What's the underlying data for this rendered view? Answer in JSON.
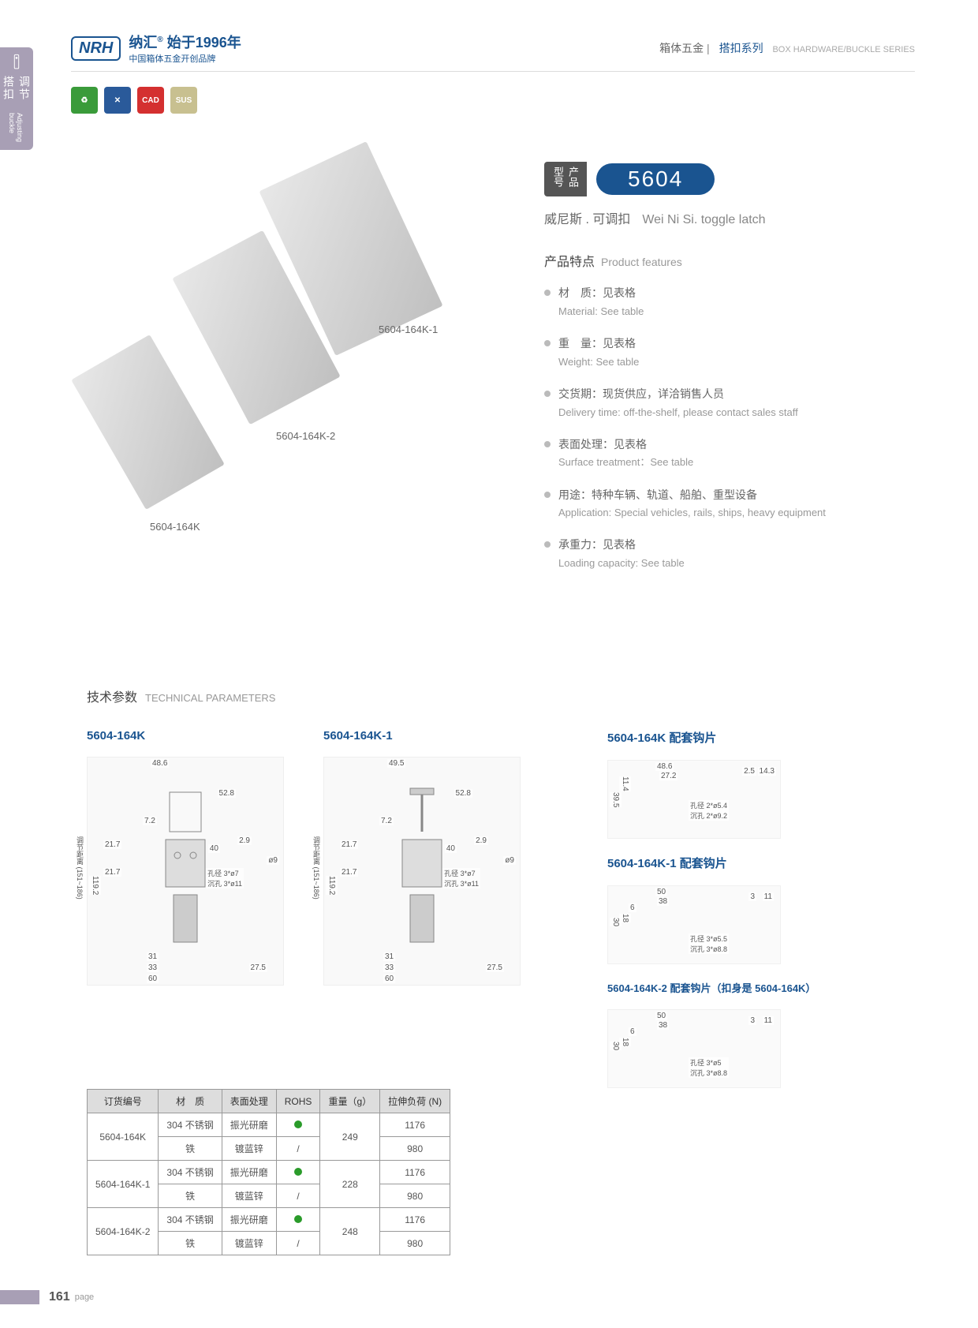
{
  "sideTab": {
    "cn": "调节搭扣",
    "en": "Adjusting buckle"
  },
  "logo": {
    "mark": "NRH",
    "main": "纳汇",
    "sup": "®",
    "year": "始于1996年",
    "sub": "中国箱体五金开创品牌"
  },
  "headerRight": {
    "cat1": "箱体五金",
    "cat2": "搭扣系列",
    "en": "BOX HARDWARE/BUCKLE SERIES"
  },
  "icons": {
    "i1": "♻",
    "i2": "✕",
    "i3": "CAD",
    "i4": "SUS"
  },
  "productLabels": {
    "p1": "5604-164K-1",
    "p2": "5604-164K-2",
    "p3": "5604-164K"
  },
  "model": {
    "label": "产品型号",
    "number": "5604"
  },
  "productName": {
    "cn": "威尼斯 . 可调扣",
    "en": "Wei Ni Si. toggle latch"
  },
  "featuresTitle": {
    "cn": "产品特点",
    "en": "Product features"
  },
  "features": [
    {
      "cn": "材　质：见表格",
      "en": "Material: See table"
    },
    {
      "cn": "重　量：见表格",
      "en": "Weight: See table"
    },
    {
      "cn": "交货期：现货供应，详洽销售人员",
      "en": "Delivery time: off-the-shelf, please contact sales staff"
    },
    {
      "cn": "表面处理：见表格",
      "en": "Surface treatment：See table"
    },
    {
      "cn": "用途：特种车辆、轨道、船舶、重型设备",
      "en": "Application: Special vehicles, rails, ships, heavy equipment"
    },
    {
      "cn": "承重力：见表格",
      "en": "Loading capacity: See table"
    }
  ],
  "techTitle": {
    "cn": "技术参数",
    "en": "TECHNICAL PARAMETERS"
  },
  "drawings": {
    "d1": {
      "title": "5604-164K",
      "dims": {
        "w": "48.6",
        "h1": "52.8",
        "h2": "7.2",
        "h3": "21.7",
        "h4": "21.7",
        "total": "119.2",
        "range": "调节距离 (151~186)",
        "hole": "孔径 3*ø7\n沉孔 3*ø11",
        "b1": "31",
        "b2": "33",
        "b3": "60",
        "d": "ø9",
        "side": "27.5",
        "mid": "40",
        "r": "2.9"
      }
    },
    "d2": {
      "title": "5604-164K-1",
      "dims": {
        "w": "49.5",
        "h1": "52.8",
        "h2": "7.2",
        "h3": "21.7",
        "h4": "21.7",
        "total": "119.2",
        "range": "调节距离 (151~186)",
        "hole": "孔径 3*ø7\n沉孔 3*ø11",
        "b1": "31",
        "b2": "33",
        "b3": "60",
        "d": "ø9",
        "side": "27.5",
        "mid": "40",
        "r": "2.9"
      }
    },
    "h1": {
      "title": "5604-164K 配套钩片",
      "dims": {
        "w": "48.6",
        "w2": "27.2",
        "h": "39.5",
        "h2": "11.4",
        "hole": "孔径 2*ø5.4\n沉孔 2*ø9.2",
        "s1": "2.5",
        "s2": "14.3"
      }
    },
    "h2": {
      "title": "5604-164K-1 配套钩片",
      "dims": {
        "w": "50",
        "w2": "38",
        "h": "30",
        "h2": "18",
        "h3": "6",
        "hole": "孔径 3*ø5.5\n沉孔 3*ø8.8",
        "s1": "3",
        "s2": "11"
      }
    },
    "h3": {
      "title": "5604-164K-2 配套钩片（扣身是 5604-164K）",
      "dims": {
        "w": "50",
        "w2": "38",
        "h": "30",
        "h2": "18",
        "h3": "6",
        "hole": "孔径 3*ø5\n沉孔 3*ø8.8",
        "s1": "3",
        "s2": "11"
      }
    }
  },
  "table": {
    "headers": [
      "订货编号",
      "材　质",
      "表面处理",
      "ROHS",
      "重量（g）",
      "拉伸负荷 (N)"
    ],
    "rows": [
      {
        "code": "5604-164K",
        "mat": "304 不锈钢",
        "surf": "振光研磨",
        "rohs": true,
        "weight": "249",
        "load": "1176",
        "span": 2
      },
      {
        "code": "",
        "mat": "铁",
        "surf": "镀蓝锌",
        "rohs": false,
        "weight": "",
        "load": "980"
      },
      {
        "code": "5604-164K-1",
        "mat": "304 不锈钢",
        "surf": "振光研磨",
        "rohs": true,
        "weight": "228",
        "load": "1176",
        "span": 2
      },
      {
        "code": "",
        "mat": "铁",
        "surf": "镀蓝锌",
        "rohs": false,
        "weight": "",
        "load": "980"
      },
      {
        "code": "5604-164K-2",
        "mat": "304 不锈钢",
        "surf": "振光研磨",
        "rohs": true,
        "weight": "248",
        "load": "1176",
        "span": 2
      },
      {
        "code": "",
        "mat": "铁",
        "surf": "镀蓝锌",
        "rohs": false,
        "weight": "",
        "load": "980"
      }
    ]
  },
  "page": {
    "num": "161",
    "text": "page"
  }
}
